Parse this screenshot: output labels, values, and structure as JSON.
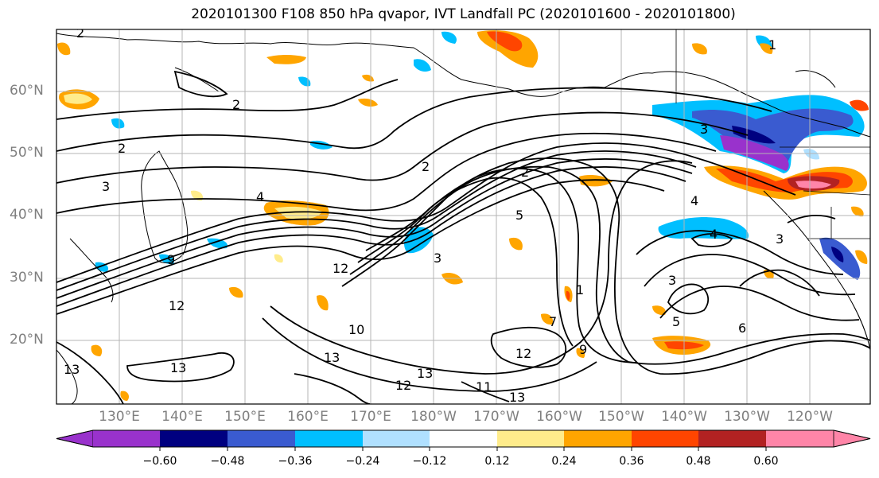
{
  "title": "2020101300 F108 850 hPa qvapor, IVT Landfall PC (2020101600 - 2020101800)",
  "lat_labels": [
    "60°N",
    "50°N",
    "40°N",
    "30°N",
    "20°N"
  ],
  "lon_labels": [
    "130°E",
    "140°E",
    "150°E",
    "160°E",
    "170°E",
    "180°W",
    "170°W",
    "160°W",
    "150°W",
    "140°W",
    "130°W",
    "120°W"
  ],
  "colorbar": {
    "tick_labels": [
      "−0.60",
      "−0.48",
      "−0.36",
      "−0.24",
      "−0.12",
      "0.12",
      "0.24",
      "0.36",
      "0.48",
      "0.60"
    ],
    "colors": [
      "#9932cc",
      "#000080",
      "#3a5bd0",
      "#00bfff",
      "#b0e0ff",
      "#ffffff",
      "#ffec8b",
      "#ffa500",
      "#ff4500",
      "#b22222",
      "#ff85a8"
    ]
  },
  "contour_labels": [
    "2",
    "2",
    "2",
    "3",
    "2",
    "2",
    "3",
    "4",
    "9",
    "3",
    "5",
    "4",
    "3",
    "4",
    "12",
    "3",
    "1",
    "12",
    "10",
    "13",
    "12",
    "13",
    "13",
    "12",
    "13",
    "11",
    "13",
    "7",
    "9",
    "6",
    "5",
    "1"
  ]
}
